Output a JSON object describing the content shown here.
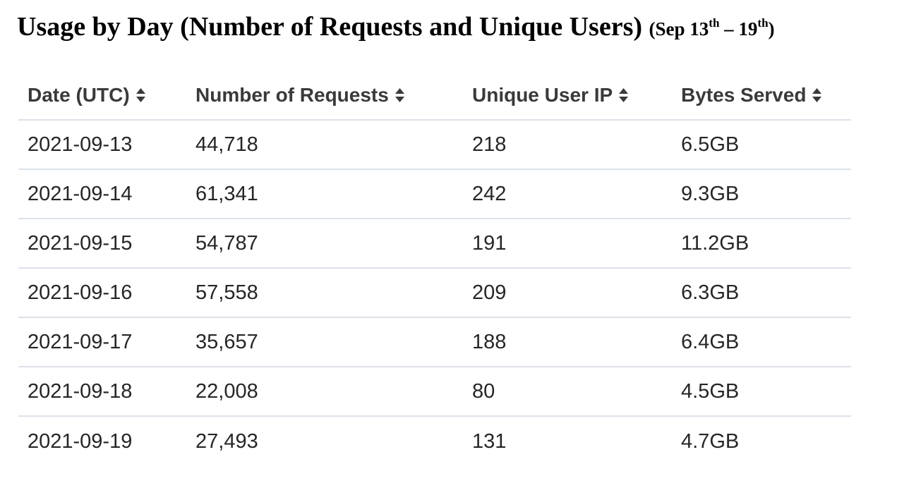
{
  "title": {
    "main": "Usage by Day (Number of Requests and Unique Users)",
    "range_prefix": "(Sep 13",
    "range_sup1": "th",
    "range_mid": " – 19",
    "range_sup2": "th",
    "range_suffix": ")"
  },
  "table": {
    "columns": [
      {
        "label": "Date (UTC)",
        "icon": "sort-icon"
      },
      {
        "label": "Number of Requests",
        "icon": "sort-icon"
      },
      {
        "label": "Unique User IP",
        "icon": "sort-icon"
      },
      {
        "label": "Bytes Served",
        "icon": "sort-icon"
      }
    ],
    "rows": [
      [
        "2021-09-13",
        "44,718",
        "218",
        "6.5GB"
      ],
      [
        "2021-09-14",
        "61,341",
        "242",
        "9.3GB"
      ],
      [
        "2021-09-15",
        "54,787",
        "191",
        "11.2GB"
      ],
      [
        "2021-09-16",
        "57,558",
        "209",
        "6.3GB"
      ],
      [
        "2021-09-17",
        "35,657",
        "188",
        "6.4GB"
      ],
      [
        "2021-09-18",
        "22,008",
        "80",
        "4.5GB"
      ],
      [
        "2021-09-19",
        "27,493",
        "131",
        "4.7GB"
      ]
    ]
  },
  "colors": {
    "divider": "#dde2ea",
    "text": "#262626",
    "header_text": "#3a3a3a"
  }
}
